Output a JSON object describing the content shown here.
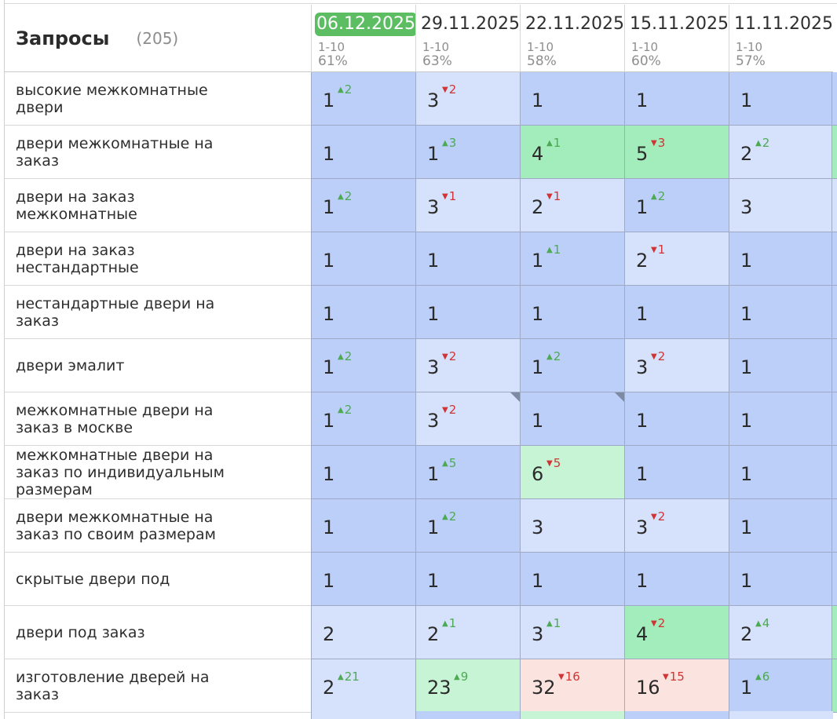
{
  "header": {
    "title": "Запросы",
    "count": "(205)"
  },
  "columns": [
    {
      "date": "06.12.2025",
      "range": "1-10",
      "pct": "61%",
      "active": true
    },
    {
      "date": "29.11.2025",
      "range": "1-10",
      "pct": "63%",
      "active": false
    },
    {
      "date": "22.11.2025",
      "range": "1-10",
      "pct": "58%",
      "active": false
    },
    {
      "date": "15.11.2025",
      "range": "1-10",
      "pct": "60%",
      "active": false
    },
    {
      "date": "11.11.2025",
      "range": "1-10",
      "pct": "57%",
      "active": false
    }
  ],
  "colors": {
    "blue_dark": "#bccff8",
    "blue_mid": "#c7d6fa",
    "blue_light": "#d6e1fb",
    "green": "#a3ecbc",
    "green_light": "#c8f4d6",
    "pink": "#fbe3df",
    "up": "#4daa53",
    "down": "#d03434"
  },
  "rows": [
    {
      "query": "высокие межкомнатные двери",
      "cells": [
        {
          "v": "1",
          "d": "2",
          "dir": "up",
          "bg": "blue_dark"
        },
        {
          "v": "3",
          "d": "2",
          "dir": "down",
          "bg": "blue_light"
        },
        {
          "v": "1",
          "bg": "blue_dark"
        },
        {
          "v": "1",
          "bg": "blue_dark"
        },
        {
          "v": "1",
          "bg": "blue_dark"
        }
      ],
      "strip": "blue_dark"
    },
    {
      "query": "двери межкомнатные на заказ",
      "cells": [
        {
          "v": "1",
          "bg": "blue_dark"
        },
        {
          "v": "1",
          "d": "3",
          "dir": "up",
          "bg": "blue_dark"
        },
        {
          "v": "4",
          "d": "1",
          "dir": "up",
          "bg": "green"
        },
        {
          "v": "5",
          "d": "3",
          "dir": "down",
          "bg": "green"
        },
        {
          "v": "2",
          "d": "2",
          "dir": "up",
          "bg": "blue_light"
        }
      ],
      "strip": "green"
    },
    {
      "query": "двери на заказ межкомнатные",
      "cells": [
        {
          "v": "1",
          "d": "2",
          "dir": "up",
          "bg": "blue_dark"
        },
        {
          "v": "3",
          "d": "1",
          "dir": "down",
          "bg": "blue_light"
        },
        {
          "v": "2",
          "d": "1",
          "dir": "down",
          "bg": "blue_light"
        },
        {
          "v": "1",
          "d": "2",
          "dir": "up",
          "bg": "blue_dark"
        },
        {
          "v": "3",
          "bg": "blue_light"
        }
      ],
      "strip": "blue_light"
    },
    {
      "query": "двери на заказ нестандартные",
      "cells": [
        {
          "v": "1",
          "bg": "blue_dark"
        },
        {
          "v": "1",
          "bg": "blue_dark"
        },
        {
          "v": "1",
          "d": "1",
          "dir": "up",
          "bg": "blue_dark"
        },
        {
          "v": "2",
          "d": "1",
          "dir": "down",
          "bg": "blue_light"
        },
        {
          "v": "1",
          "bg": "blue_dark"
        }
      ],
      "strip": "blue_dark"
    },
    {
      "query": "нестандартные двери на заказ",
      "cells": [
        {
          "v": "1",
          "bg": "blue_dark"
        },
        {
          "v": "1",
          "bg": "blue_dark"
        },
        {
          "v": "1",
          "bg": "blue_dark"
        },
        {
          "v": "1",
          "bg": "blue_dark"
        },
        {
          "v": "1",
          "bg": "blue_dark"
        }
      ],
      "strip": "blue_dark"
    },
    {
      "query": "двери эмалит",
      "cells": [
        {
          "v": "1",
          "d": "2",
          "dir": "up",
          "bg": "blue_dark"
        },
        {
          "v": "3",
          "d": "2",
          "dir": "down",
          "bg": "blue_light"
        },
        {
          "v": "1",
          "d": "2",
          "dir": "up",
          "bg": "blue_dark"
        },
        {
          "v": "3",
          "d": "2",
          "dir": "down",
          "bg": "blue_light"
        },
        {
          "v": "1",
          "bg": "blue_dark"
        }
      ],
      "strip": "blue_dark"
    },
    {
      "query": "межкомнатные двери на заказ в москве",
      "cells": [
        {
          "v": "1",
          "d": "2",
          "dir": "up",
          "bg": "blue_dark"
        },
        {
          "v": "3",
          "d": "2",
          "dir": "down",
          "bg": "blue_light",
          "corner": true
        },
        {
          "v": "1",
          "bg": "blue_dark",
          "corner": true
        },
        {
          "v": "1",
          "bg": "blue_dark"
        },
        {
          "v": "1",
          "bg": "blue_dark"
        }
      ],
      "strip": "blue_dark"
    },
    {
      "query": "межкомнатные двери на заказ по индивидуальным размерам",
      "cells": [
        {
          "v": "1",
          "bg": "blue_dark"
        },
        {
          "v": "1",
          "d": "5",
          "dir": "up",
          "bg": "blue_dark"
        },
        {
          "v": "6",
          "d": "5",
          "dir": "down",
          "bg": "green_light"
        },
        {
          "v": "1",
          "bg": "blue_dark"
        },
        {
          "v": "1",
          "bg": "blue_dark"
        }
      ],
      "strip": "blue_dark"
    },
    {
      "query": "двери межкомнатные на заказ по своим размерам",
      "cells": [
        {
          "v": "1",
          "bg": "blue_dark"
        },
        {
          "v": "1",
          "d": "2",
          "dir": "up",
          "bg": "blue_dark"
        },
        {
          "v": "3",
          "bg": "blue_light"
        },
        {
          "v": "3",
          "d": "2",
          "dir": "down",
          "bg": "blue_light"
        },
        {
          "v": "1",
          "bg": "blue_dark"
        }
      ],
      "strip": "blue_dark"
    },
    {
      "query": "скрытые двери под",
      "cells": [
        {
          "v": "1",
          "bg": "blue_dark"
        },
        {
          "v": "1",
          "bg": "blue_dark"
        },
        {
          "v": "1",
          "bg": "blue_dark"
        },
        {
          "v": "1",
          "bg": "blue_dark"
        },
        {
          "v": "1",
          "bg": "blue_dark"
        }
      ],
      "strip": "blue_dark"
    },
    {
      "query": "двери под заказ",
      "cells": [
        {
          "v": "2",
          "bg": "blue_light"
        },
        {
          "v": "2",
          "d": "1",
          "dir": "up",
          "bg": "blue_light"
        },
        {
          "v": "3",
          "d": "1",
          "dir": "up",
          "bg": "blue_light"
        },
        {
          "v": "4",
          "d": "2",
          "dir": "down",
          "bg": "green"
        },
        {
          "v": "2",
          "d": "4",
          "dir": "up",
          "bg": "blue_light"
        }
      ],
      "strip": "green"
    },
    {
      "query": "изготовление дверей на заказ",
      "cells": [
        {
          "v": "2",
          "d": "21",
          "dir": "up",
          "bg": "blue_light"
        },
        {
          "v": "23",
          "d": "9",
          "dir": "up",
          "bg": "green_light"
        },
        {
          "v": "32",
          "d": "16",
          "dir": "down",
          "bg": "pink"
        },
        {
          "v": "16",
          "d": "15",
          "dir": "down",
          "bg": "pink"
        },
        {
          "v": "1",
          "d": "6",
          "dir": "up",
          "bg": "blue_dark"
        }
      ],
      "strip": "green"
    }
  ],
  "next_row_bg": [
    "blue_light",
    "blue_dark",
    "green_light",
    "blue_dark",
    "blue_light"
  ]
}
